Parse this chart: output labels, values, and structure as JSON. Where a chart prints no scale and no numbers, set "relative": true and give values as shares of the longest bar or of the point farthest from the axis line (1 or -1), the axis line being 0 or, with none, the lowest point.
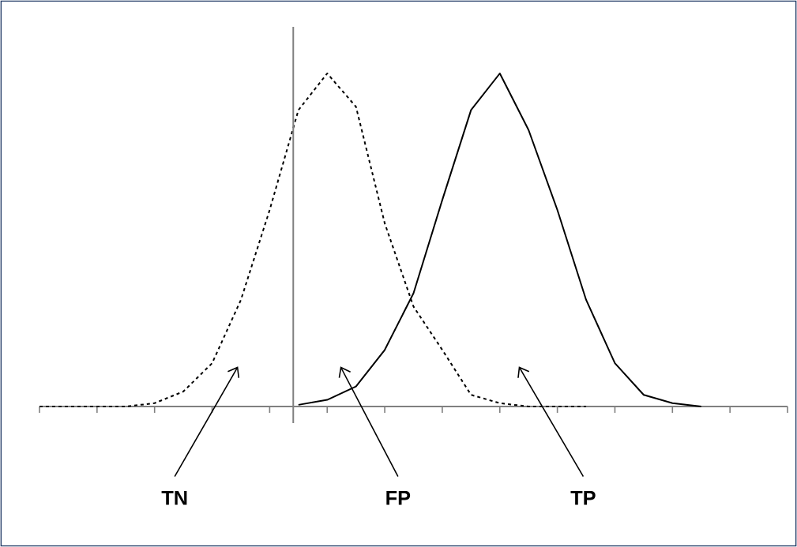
{
  "chart_data": {
    "type": "line",
    "relative": true,
    "categories": [
      null,
      null,
      null,
      null,
      null,
      null,
      null,
      null,
      null,
      null,
      null,
      null,
      null,
      null,
      null,
      null,
      null,
      null,
      null,
      null,
      null,
      null,
      null,
      null,
      null,
      null,
      null
    ],
    "series": [
      {
        "color": "#000000",
        "line_style": "dashed",
        "values": [
          0,
          0,
          0,
          0,
          0.01,
          0.045,
          0.13,
          0.32,
          0.59,
          0.89,
          1.0,
          0.9,
          0.55,
          0.3,
          0.17,
          0.035,
          0.01,
          0,
          0,
          0,
          null,
          null,
          null,
          null,
          null,
          null,
          null
        ]
      },
      {
        "color": "#000000",
        "line_style": "solid",
        "values": [
          null,
          null,
          null,
          null,
          null,
          null,
          null,
          null,
          null,
          0.005,
          0.02,
          0.06,
          0.17,
          0.34,
          0.62,
          0.89,
          1.0,
          0.83,
          0.59,
          0.32,
          0.13,
          0.035,
          0.01,
          0,
          null,
          null,
          null
        ]
      }
    ],
    "annotations": [
      "TN",
      "FP",
      "TP"
    ]
  }
}
